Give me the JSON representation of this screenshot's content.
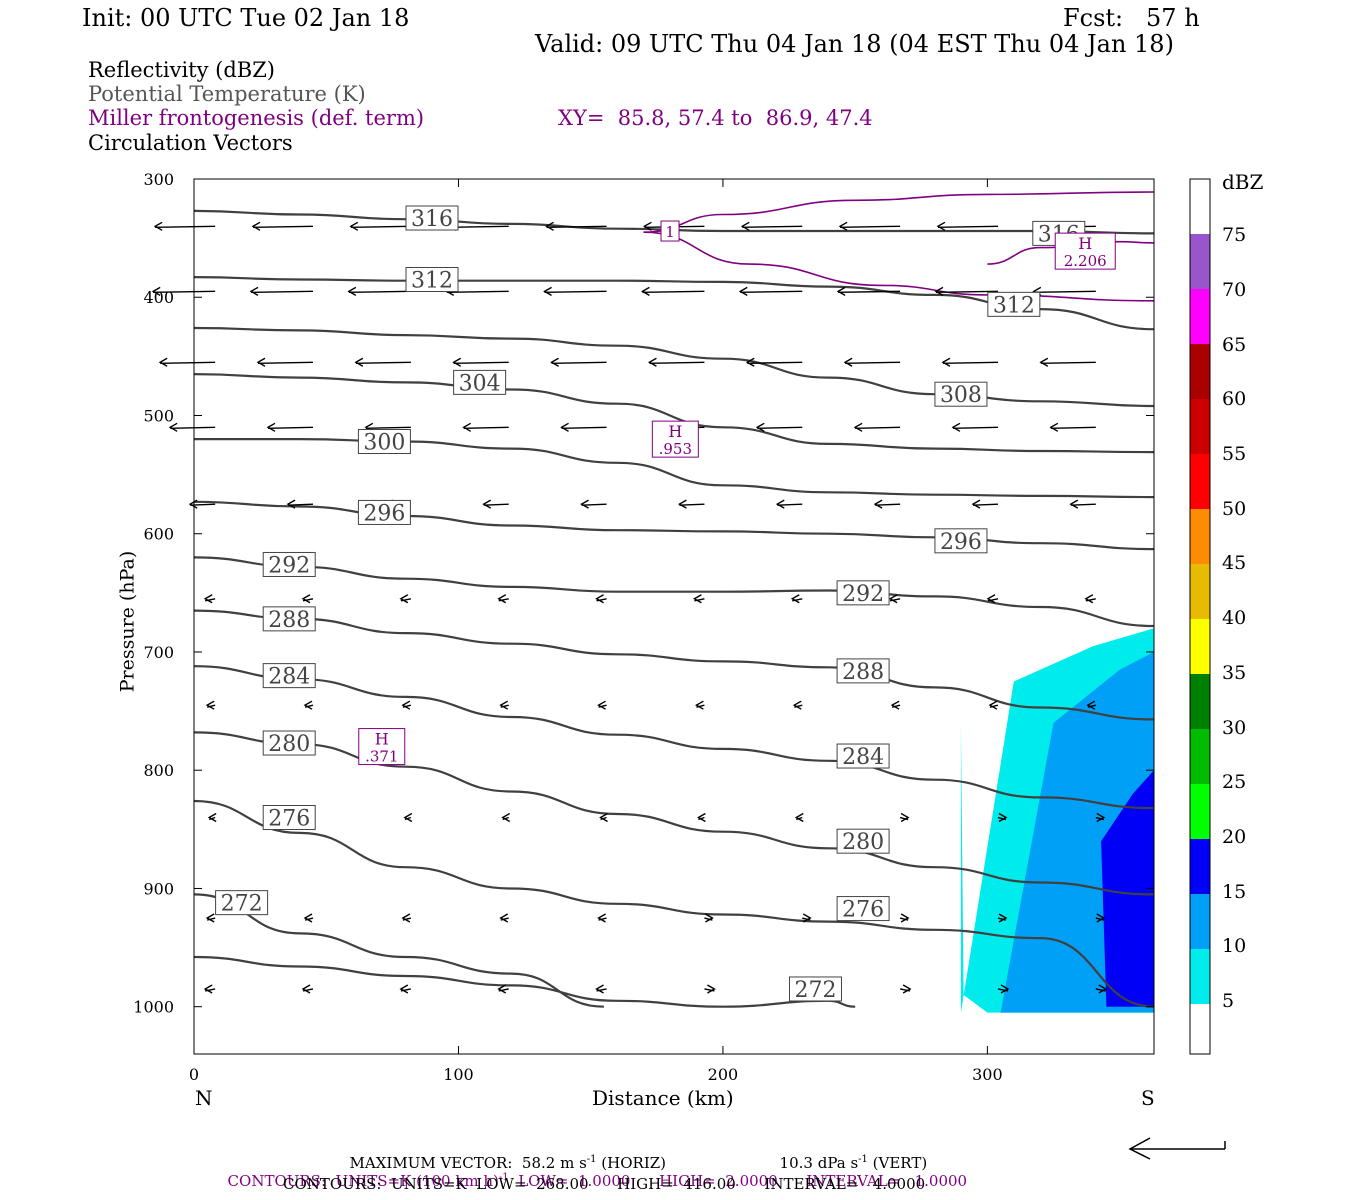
{
  "header": {
    "init": "Init: 00 UTC Tue 02 Jan 18",
    "fcst": "Fcst:   57 h",
    "valid": "Valid: 09 UTC Thu 04 Jan 18 (04 EST Thu 04 Jan 18)"
  },
  "legend": {
    "reflectivity": "Reflectivity (dBZ)",
    "theta": "Potential Temperature (K)",
    "frontogenesis": "Miller frontogenesis (def. term)",
    "xy": "XY=  85.8, 57.4 to  86.9, 47.4",
    "vectors": "Circulation Vectors"
  },
  "colors": {
    "theta": "#404040",
    "frontogenesis": "#800080",
    "dbz5": "#00ecec",
    "dbz10": "#00a0f6",
    "dbz15": "#0000f6"
  },
  "axes": {
    "ylabel": "Pressure (hPa)",
    "xlabel": "Distance (km)",
    "left_end": "N",
    "right_end": "S"
  },
  "colorbar": {
    "title": "dBZ",
    "labels": [
      "5",
      "10",
      "15",
      "20",
      "25",
      "30",
      "35",
      "40",
      "45",
      "50",
      "55",
      "60",
      "65",
      "70",
      "75"
    ]
  },
  "footer": {
    "max_vector_1": "MAXIMUM VECTOR:  58.2 m s",
    "max_vector_exp": "-1",
    "max_vector_2": " (HORIZ)",
    "vert_1": "10.3 dPa s",
    "vert_exp": "-1",
    "vert_2": " (VERT)",
    "contours_frontogenesis_1": "CONTOURS:  UNITS=K (100 km h)",
    "contours_frontogenesis_exp": "-1",
    "contours_frontogenesis_2": "  LOW=  1.0000      HIGH=  2.0000      INTERVAL=   1.0000",
    "contours_theta": "CONTOURS:  UNITS=K  LOW=  268.00      HIGH=  416.00      INTERVAL=   4.0000"
  },
  "chart_data": {
    "type": "line",
    "title": "",
    "xlabel": "Distance (km)",
    "ylabel": "Pressure (hPa)",
    "xlim": [
      0,
      363
    ],
    "ylim": [
      1040,
      300
    ],
    "y_inverted": true,
    "x_ticks": [
      0,
      100,
      200,
      300
    ],
    "y_ticks": [
      300,
      400,
      500,
      600,
      700,
      800,
      900,
      1000
    ],
    "theta_contours_K": [
      {
        "level": 316,
        "x": [
          0,
          40,
          80,
          120,
          160,
          200,
          240,
          280,
          320,
          363
        ],
        "p": [
          327,
          330,
          334,
          338,
          342,
          344,
          344,
          344,
          344,
          346
        ]
      },
      {
        "level": 312,
        "x": [
          0,
          40,
          80,
          120,
          160,
          200,
          240,
          280,
          320,
          363
        ],
        "p": [
          383,
          385,
          386,
          386,
          386,
          387,
          391,
          398,
          410,
          427
        ]
      },
      {
        "level": 308,
        "x": [
          0,
          40,
          80,
          120,
          160,
          200,
          240,
          280,
          320,
          363
        ],
        "p": [
          426,
          428,
          432,
          435,
          441,
          452,
          468,
          482,
          488,
          492
        ]
      },
      {
        "level": 304,
        "x": [
          0,
          40,
          80,
          120,
          160,
          200,
          240,
          280,
          320,
          363
        ],
        "p": [
          465,
          468,
          472,
          478,
          490,
          510,
          524,
          528,
          530,
          531
        ]
      },
      {
        "level": 300,
        "x": [
          0,
          40,
          80,
          120,
          160,
          200,
          240,
          280,
          320,
          363
        ],
        "p": [
          520,
          520,
          522,
          528,
          540,
          559,
          565,
          567,
          568,
          569
        ]
      },
      {
        "level": 296,
        "x": [
          0,
          40,
          80,
          120,
          160,
          200,
          240,
          280,
          320,
          363
        ],
        "p": [
          573,
          577,
          585,
          593,
          597,
          598,
          600,
          603,
          608,
          613
        ]
      },
      {
        "level": 292,
        "x": [
          0,
          40,
          80,
          120,
          160,
          200,
          240,
          280,
          320,
          363
        ],
        "p": [
          620,
          628,
          638,
          645,
          649,
          649,
          648,
          653,
          662,
          678
        ]
      },
      {
        "level": 288,
        "x": [
          0,
          40,
          80,
          120,
          160,
          200,
          240,
          280,
          320,
          363
        ],
        "p": [
          665,
          672,
          684,
          693,
          702,
          708,
          713,
          730,
          747,
          757
        ]
      },
      {
        "level": 284,
        "x": [
          0,
          40,
          80,
          120,
          160,
          200,
          240,
          280,
          320,
          363
        ],
        "p": [
          712,
          723,
          738,
          755,
          770,
          782,
          792,
          808,
          823,
          832
        ]
      },
      {
        "level": 280,
        "x": [
          0,
          40,
          80,
          120,
          160,
          200,
          240,
          280,
          320,
          363
        ],
        "p": [
          768,
          778,
          797,
          818,
          837,
          852,
          866,
          882,
          895,
          905
        ]
      },
      {
        "level": 276,
        "x": [
          0,
          40,
          80,
          120,
          160,
          200,
          240,
          280,
          320,
          363
        ],
        "p": [
          826,
          853,
          882,
          900,
          913,
          922,
          928,
          935,
          942,
          1000
        ]
      },
      {
        "level": 272,
        "x": [
          0,
          40,
          80,
          120,
          155
        ],
        "p": [
          905,
          938,
          958,
          972,
          1000
        ]
      },
      {
        "level": 272,
        "x": [
          0,
          40,
          80,
          120,
          160,
          200,
          240,
          250
        ],
        "p": [
          958,
          966,
          974,
          982,
          995,
          1000,
          995,
          1000
        ]
      }
    ],
    "frontogenesis_contours": [
      {
        "level": 1,
        "x": [
          170,
          200,
          250,
          300,
          363
        ],
        "p": [
          345,
          330,
          318,
          313,
          311
        ]
      },
      {
        "level": 1,
        "x": [
          170,
          210,
          260,
          300,
          363
        ],
        "p": [
          345,
          372,
          390,
          398,
          403
        ]
      },
      {
        "level": 1,
        "x": [
          300,
          320,
          350,
          363
        ],
        "p": [
          372,
          358,
          353,
          354
        ]
      }
    ],
    "frontogenesis_maxima": [
      {
        "label": "H",
        "value": ".953",
        "x": 182,
        "p": 520
      },
      {
        "label": "H",
        "value": ".371",
        "x": 71,
        "p": 780
      },
      {
        "label": "H",
        "value": "2.206",
        "x": 337,
        "p": 361
      }
    ],
    "reflectivity_dBZ": [
      {
        "level": 5,
        "x": [
          290,
          310,
          340,
          363,
          363,
          300,
          291,
          290
        ],
        "p": [
          1005,
          725,
          695,
          680,
          1005,
          1005,
          990,
          760
        ]
      },
      {
        "level": 10,
        "x": [
          305,
          325,
          350,
          363,
          363,
          307
        ],
        "p": [
          1005,
          760,
          715,
          700,
          1005,
          1005
        ]
      },
      {
        "level": 15,
        "x": [
          343,
          355,
          363,
          363,
          345
        ],
        "p": [
          860,
          820,
          800,
          1000,
          1000
        ]
      }
    ],
    "legend": [
      "Reflectivity (dBZ)",
      "Potential Temperature (K)",
      "Miller frontogenesis (def. term)",
      "Circulation Vectors"
    ]
  }
}
